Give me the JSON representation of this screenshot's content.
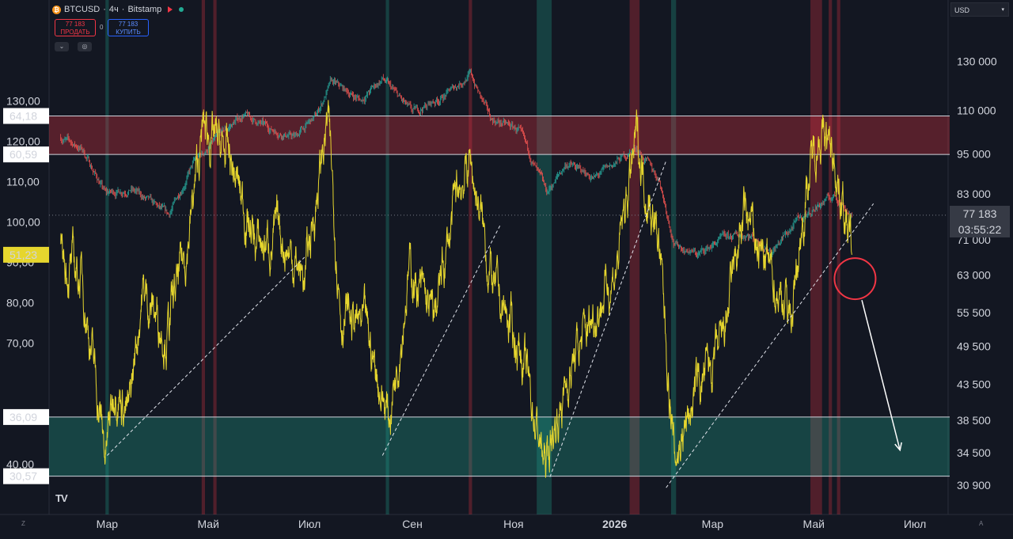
{
  "header": {
    "symbol": "BTCUSD",
    "interval": "4ч",
    "exchange": "Bitstamp",
    "separator": "·",
    "coin_icon": "bitcoin-icon"
  },
  "trade": {
    "sell_price": "77 183",
    "sell_label": "ПРОДАТЬ",
    "spread": "0",
    "buy_price": "77 183",
    "buy_label": "КУПИТЬ"
  },
  "currency": {
    "label": "USD"
  },
  "last_price": {
    "value": "77 183",
    "countdown": "03:55:22"
  },
  "logo_text": "TV",
  "colors": {
    "background": "#131722",
    "rsi_line": "#e6d62e",
    "red_band": "#f23645",
    "green_band": "#22ab94",
    "candle_up": "#26a69a",
    "candle_down": "#ef5350"
  },
  "chart_data": [
    {
      "type": "candlestick",
      "name": "BTCUSD",
      "y_scale": "log",
      "ylim": [
        28000,
        160000
      ],
      "right_axis_ticks": [
        "130 000",
        "110 000",
        "95 000",
        "83 000",
        "71 000",
        "63 000",
        "55 500",
        "49 500",
        "43 500",
        "38 500",
        "34 500",
        "30 900"
      ],
      "right_axis_values": [
        130000,
        110000,
        95000,
        83000,
        71000,
        63000,
        55500,
        49500,
        43500,
        38500,
        34500,
        30900
      ],
      "anchors": [
        {
          "x": "2025-02-01",
          "y": 100500
        },
        {
          "x": "2025-02-14",
          "y": 96500
        },
        {
          "x": "2025-02-28",
          "y": 83000
        },
        {
          "x": "2025-03-15",
          "y": 84500
        },
        {
          "x": "2025-04-07",
          "y": 77000
        },
        {
          "x": "2025-04-22",
          "y": 92000
        },
        {
          "x": "2025-05-08",
          "y": 101000
        },
        {
          "x": "2025-05-22",
          "y": 108500
        },
        {
          "x": "2025-06-05",
          "y": 104000
        },
        {
          "x": "2025-06-22",
          "y": 100500
        },
        {
          "x": "2025-07-05",
          "y": 108000
        },
        {
          "x": "2025-07-14",
          "y": 121000
        },
        {
          "x": "2025-08-01",
          "y": 114000
        },
        {
          "x": "2025-08-14",
          "y": 122500
        },
        {
          "x": "2025-09-01",
          "y": 109000
        },
        {
          "x": "2025-09-20",
          "y": 115500
        },
        {
          "x": "2025-10-06",
          "y": 124500
        },
        {
          "x": "2025-10-18",
          "y": 107000
        },
        {
          "x": "2025-11-04",
          "y": 103000
        },
        {
          "x": "2025-11-21",
          "y": 83000
        },
        {
          "x": "2025-12-03",
          "y": 92000
        },
        {
          "x": "2025-12-20",
          "y": 87500
        },
        {
          "x": "2026-01-14",
          "y": 97000
        },
        {
          "x": "2026-01-28",
          "y": 87000
        },
        {
          "x": "2026-02-06",
          "y": 70000
        },
        {
          "x": "2026-02-20",
          "y": 67500
        },
        {
          "x": "2026-03-06",
          "y": 71000
        },
        {
          "x": "2026-03-22",
          "y": 72500
        },
        {
          "x": "2026-04-06",
          "y": 68500
        },
        {
          "x": "2026-04-22",
          "y": 76000
        },
        {
          "x": "2026-05-06",
          "y": 80500
        },
        {
          "x": "2026-05-14",
          "y": 82500
        },
        {
          "x": "2026-05-24",
          "y": 77183
        }
      ]
    },
    {
      "type": "line",
      "name": "",
      "ylim": [
        27,
        75
      ],
      "left_axis_ticks": [
        "130,00",
        "120,00",
        "110,00",
        "100,00",
        "90,00",
        "80,00",
        "70,00",
        "40,00"
      ],
      "left_axis_values": [
        130,
        120,
        110,
        100,
        90,
        80,
        70,
        40
      ],
      "levels": [
        {
          "label": "64,18",
          "value": 64.18
        },
        {
          "label": "60,59",
          "value": 60.59
        },
        {
          "label": "36,09",
          "value": 36.09
        },
        {
          "label": "30,57",
          "value": 30.57
        }
      ],
      "current": {
        "label": "51,23",
        "value": 51.23
      },
      "zones": [
        {
          "from": 60.59,
          "to": 64.18,
          "color": "red"
        },
        {
          "from": 30.57,
          "to": 36.09,
          "color": "green"
        }
      ],
      "anchors": [
        {
          "x": "2025-02-01",
          "y": 51
        },
        {
          "x": "2025-02-14",
          "y": 49
        },
        {
          "x": "2025-02-28",
          "y": 32.5
        },
        {
          "x": "2025-03-06",
          "y": 40
        },
        {
          "x": "2025-03-14",
          "y": 36
        },
        {
          "x": "2025-03-22",
          "y": 48
        },
        {
          "x": "2025-04-06",
          "y": 44
        },
        {
          "x": "2025-04-18",
          "y": 52
        },
        {
          "x": "2025-04-28",
          "y": 63
        },
        {
          "x": "2025-05-14",
          "y": 60
        },
        {
          "x": "2025-05-30",
          "y": 52
        },
        {
          "x": "2025-06-14",
          "y": 53
        },
        {
          "x": "2025-06-28",
          "y": 49
        },
        {
          "x": "2025-07-12",
          "y": 64
        },
        {
          "x": "2025-07-20",
          "y": 46
        },
        {
          "x": "2025-08-04",
          "y": 44
        },
        {
          "x": "2025-08-18",
          "y": 36
        },
        {
          "x": "2025-08-30",
          "y": 50
        },
        {
          "x": "2025-09-14",
          "y": 45
        },
        {
          "x": "2025-09-28",
          "y": 57
        },
        {
          "x": "2025-10-06",
          "y": 60
        },
        {
          "x": "2025-10-20",
          "y": 48
        },
        {
          "x": "2025-11-06",
          "y": 42
        },
        {
          "x": "2025-11-20",
          "y": 31.5
        },
        {
          "x": "2025-12-04",
          "y": 40
        },
        {
          "x": "2025-12-20",
          "y": 46
        },
        {
          "x": "2026-01-02",
          "y": 50
        },
        {
          "x": "2026-01-14",
          "y": 62
        },
        {
          "x": "2026-01-28",
          "y": 52
        },
        {
          "x": "2026-02-06",
          "y": 32
        },
        {
          "x": "2026-02-20",
          "y": 39
        },
        {
          "x": "2026-03-06",
          "y": 42
        },
        {
          "x": "2026-03-20",
          "y": 55
        },
        {
          "x": "2026-04-06",
          "y": 49
        },
        {
          "x": "2026-04-18",
          "y": 46
        },
        {
          "x": "2026-04-26",
          "y": 57
        },
        {
          "x": "2026-05-04",
          "y": 63
        },
        {
          "x": "2026-05-14",
          "y": 60
        },
        {
          "x": "2026-05-24",
          "y": 51.23
        }
      ],
      "trendlines": [
        {
          "from": {
            "x": "2025-03-01",
            "y": 32.5
          },
          "to": {
            "x": "2025-06-28",
            "y": 51
          }
        },
        {
          "from": {
            "x": "2025-08-14",
            "y": 32.5
          },
          "to": {
            "x": "2025-10-24",
            "y": 54
          }
        },
        {
          "from": {
            "x": "2025-11-23",
            "y": 30.5
          },
          "to": {
            "x": "2026-02-01",
            "y": 60
          }
        },
        {
          "from": {
            "x": "2026-02-01",
            "y": 29.5
          },
          "to": {
            "x": "2026-06-06",
            "y": 56
          }
        }
      ],
      "projection_arrow": {
        "from": {
          "x": "2026-05-30",
          "y": 47
        },
        "to": {
          "x": "2026-06-22",
          "y": 33
        }
      }
    }
  ],
  "x_axis": {
    "ticks": [
      {
        "label": "Мар",
        "date": "2025-03-01",
        "bold": false
      },
      {
        "label": "Май",
        "date": "2025-05-01",
        "bold": false
      },
      {
        "label": "Июл",
        "date": "2025-07-01",
        "bold": false
      },
      {
        "label": "Сен",
        "date": "2025-09-01",
        "bold": false
      },
      {
        "label": "Ноя",
        "date": "2025-11-01",
        "bold": false
      },
      {
        "label": "2026",
        "date": "2026-01-01",
        "bold": true
      },
      {
        "label": "Мар",
        "date": "2026-03-01",
        "bold": false
      },
      {
        "label": "Май",
        "date": "2026-05-01",
        "bold": false
      },
      {
        "label": "Июл",
        "date": "2026-07-01",
        "bold": false
      }
    ],
    "range": [
      "2025-01-25",
      "2026-07-21"
    ]
  },
  "vertical_bands": [
    {
      "from": "2025-02-28",
      "to": "2025-03-02",
      "color": "green"
    },
    {
      "from": "2025-04-27",
      "to": "2025-04-29",
      "color": "red"
    },
    {
      "from": "2025-05-04",
      "to": "2025-05-06",
      "color": "red"
    },
    {
      "from": "2025-08-16",
      "to": "2025-08-18",
      "color": "green"
    },
    {
      "from": "2025-10-05",
      "to": "2025-10-07",
      "color": "red"
    },
    {
      "from": "2025-11-15",
      "to": "2025-11-24",
      "color": "green"
    },
    {
      "from": "2026-01-10",
      "to": "2026-01-16",
      "color": "red"
    },
    {
      "from": "2026-02-04",
      "to": "2026-02-07",
      "color": "green"
    },
    {
      "from": "2026-04-29",
      "to": "2026-05-06",
      "color": "red"
    },
    {
      "from": "2026-05-10",
      "to": "2026-05-12",
      "color": "red"
    },
    {
      "from": "2026-05-15",
      "to": "2026-05-17",
      "color": "red"
    }
  ]
}
